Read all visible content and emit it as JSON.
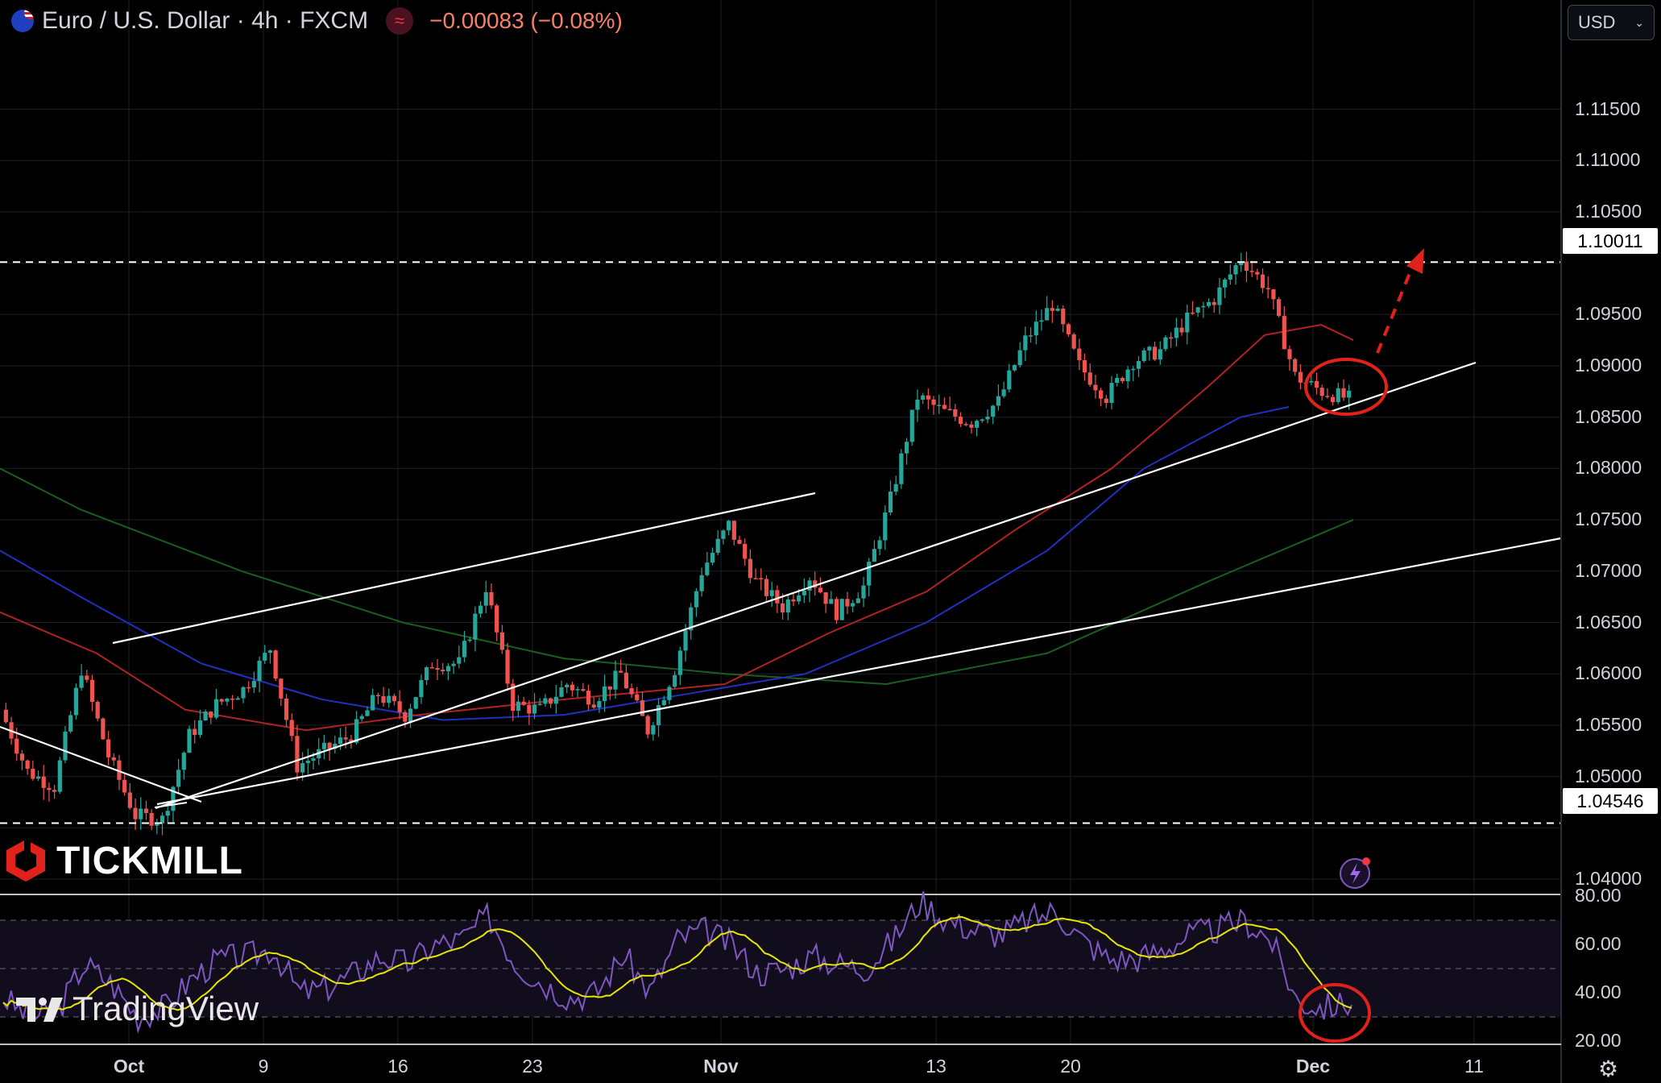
{
  "header": {
    "symbol": "Euro / U.S. Dollar · 4h · FXCM",
    "change": "−0.00083 (−0.08%)",
    "indicator_icon": "wave-icon",
    "currency": "USD"
  },
  "price_axis": [
    "1.11500",
    "1.11000",
    "1.10500",
    "1.09500",
    "1.09000",
    "1.08500",
    "1.08000",
    "1.07500",
    "1.07000",
    "1.06500",
    "1.06000",
    "1.05500",
    "1.05000",
    "1.04000"
  ],
  "resistance_label": "1.10011",
  "support_label": "1.04546",
  "rsi_axis": [
    "80.00",
    "60.00",
    "40.00",
    "20.00"
  ],
  "time_axis": [
    "Oct",
    "9",
    "16",
    "23",
    "Nov",
    "13",
    "20",
    "Dec",
    "11"
  ],
  "brand": {
    "broker": "TICKMILL",
    "platform": "TradingView"
  },
  "colors": {
    "up": "#26a69a",
    "down": "#ef5350",
    "ma_red": "#b22222",
    "ma_blue": "#2030c0",
    "ma_green": "#1b5e20",
    "rsi": "#7e57c2",
    "rsi_ma": "#e6e600",
    "annotation": "#e0221b"
  },
  "chart_data": {
    "type": "candlestick",
    "title": "Euro / U.S. Dollar · 4h · FXCM",
    "ylim": [
      1.0355,
      1.1215
    ],
    "key_levels": {
      "resistance": 1.10011,
      "support": 1.04546
    },
    "price_path": [
      [
        "Sep 27",
        1.0565
      ],
      [
        "Sep 28",
        1.0505
      ],
      [
        "Sep 29",
        1.049
      ],
      [
        "Oct 2",
        1.0605
      ],
      [
        "Oct 3",
        1.052
      ],
      [
        "Oct 4",
        1.0462
      ],
      [
        "Oct 5",
        1.0458
      ],
      [
        "Oct 6",
        1.054
      ],
      [
        "Oct 9",
        1.057
      ],
      [
        "Oct 10",
        1.0585
      ],
      [
        "Oct 12",
        1.0625
      ],
      [
        "Oct 13",
        1.051
      ],
      [
        "Oct 16",
        1.0525
      ],
      [
        "Oct 18",
        1.054
      ],
      [
        "Oct 20",
        1.058
      ],
      [
        "Oct 22",
        1.056
      ],
      [
        "Oct 23",
        1.061
      ],
      [
        "Oct 24",
        1.061
      ],
      [
        "Oct 25",
        1.0685
      ],
      [
        "Oct 26",
        1.057
      ],
      [
        "Oct 27",
        1.0565
      ],
      [
        "Oct 30",
        1.059
      ],
      [
        "Oct 31",
        1.0575
      ],
      [
        "Nov 1",
        1.06
      ],
      [
        "Nov 2",
        1.0545
      ],
      [
        "Nov 3",
        1.0605
      ],
      [
        "Nov 5",
        1.07
      ],
      [
        "Nov 6",
        1.0745
      ],
      [
        "Nov 8",
        1.069
      ],
      [
        "Nov 9",
        1.0665
      ],
      [
        "Nov 10",
        1.0695
      ],
      [
        "Nov 12",
        1.066
      ],
      [
        "Nov 13",
        1.0685
      ],
      [
        "Nov 14",
        1.077
      ],
      [
        "Nov 15",
        1.087
      ],
      [
        "Nov 16",
        1.0855
      ],
      [
        "Nov 17",
        1.0845
      ],
      [
        "Nov 19",
        1.0865
      ],
      [
        "Nov 20",
        1.0925
      ],
      [
        "Nov 21",
        1.096
      ],
      [
        "Nov 22",
        1.09
      ],
      [
        "Nov 23",
        1.087
      ],
      [
        "Nov 24",
        1.0905
      ],
      [
        "Nov 25",
        1.0915
      ],
      [
        "Nov 27",
        1.0945
      ],
      [
        "Nov 28",
        1.0965
      ],
      [
        "Nov 29",
        1.1005
      ],
      [
        "Nov 30",
        1.0975
      ],
      [
        "Dec 1",
        1.089
      ],
      [
        "Dec 2",
        1.0875
      ],
      [
        "Dec 3",
        1.0868
      ]
    ],
    "rsi_path": [
      38,
      30,
      32,
      52,
      44,
      30,
      34,
      46,
      54,
      55,
      58,
      40,
      42,
      48,
      55,
      52,
      60,
      62,
      72,
      52,
      44,
      38,
      40,
      56,
      40,
      62,
      66,
      60,
      48,
      50,
      55,
      52,
      50,
      62,
      78,
      70,
      66,
      64,
      70,
      74,
      62,
      54,
      54,
      58,
      64,
      66,
      70,
      62,
      36,
      34,
      36
    ],
    "rsi_ylim": [
      20,
      80
    ],
    "annotations": [
      "channel",
      "lower trendline",
      "circle at channel support",
      "dashed arrow up to resistance",
      "circle on RSI"
    ]
  }
}
